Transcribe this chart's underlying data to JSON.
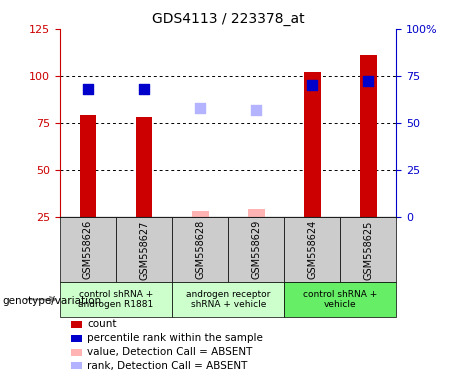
{
  "title": "GDS4113 / 223378_at",
  "samples": [
    "GSM558626",
    "GSM558627",
    "GSM558628",
    "GSM558629",
    "GSM558624",
    "GSM558625"
  ],
  "bar_values": [
    79,
    78,
    null,
    null,
    102,
    111
  ],
  "bar_color": "#cc0000",
  "dot_values": [
    93,
    93,
    null,
    null,
    95,
    97
  ],
  "dot_color": "#0000cc",
  "absent_bar_values": [
    null,
    null,
    28,
    29,
    null,
    null
  ],
  "absent_bar_color": "#ffb3b3",
  "absent_dot_values": [
    null,
    null,
    83,
    82,
    null,
    null
  ],
  "absent_dot_color": "#b3b3ff",
  "ylim_left": [
    25,
    125
  ],
  "ylim_right": [
    0,
    100
  ],
  "yticks_left": [
    25,
    50,
    75,
    100,
    125
  ],
  "yticks_right": [
    0,
    25,
    50,
    75,
    100
  ],
  "left_tick_color": "#cc0000",
  "right_tick_color": "#0000cc",
  "grid_values": [
    50,
    75,
    100
  ],
  "bar_width": 0.3,
  "dot_size": 50,
  "group_defs": [
    {
      "start": 0,
      "end": 2,
      "label": "control shRNA +\nandrogen R1881",
      "color": "#ccffcc"
    },
    {
      "start": 2,
      "end": 4,
      "label": "androgen receptor\nshRNA + vehicle",
      "color": "#ccffcc"
    },
    {
      "start": 4,
      "end": 6,
      "label": "control shRNA +\nvehicle",
      "color": "#66ee66"
    }
  ],
  "legend_items": [
    {
      "label": "count",
      "color": "#cc0000"
    },
    {
      "label": "percentile rank within the sample",
      "color": "#0000cc"
    },
    {
      "label": "value, Detection Call = ABSENT",
      "color": "#ffb3b3"
    },
    {
      "label": "rank, Detection Call = ABSENT",
      "color": "#b3b3ff"
    }
  ],
  "genotype_label": "genotype/variation",
  "sample_bg_color": "#cccccc",
  "figure_bg": "#ffffff"
}
